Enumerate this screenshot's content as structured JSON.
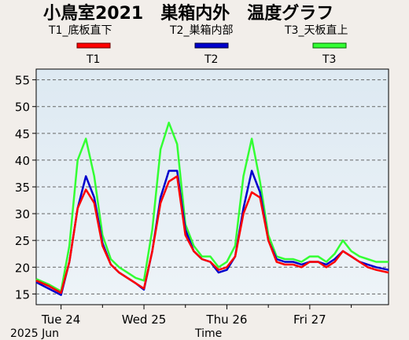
{
  "chart_data": {
    "type": "line",
    "title": "小鳥室2021　巣箱内外　温度グラフ",
    "series_labels": [
      "T1_底板直下",
      "T2_巣箱内部",
      "T3_天板直上"
    ],
    "legend": [
      {
        "name": "T1",
        "color": "#ff0000"
      },
      {
        "name": "T2",
        "color": "#0000cc"
      },
      {
        "name": "T3",
        "color": "#33ff33"
      }
    ],
    "xlabel": "Time",
    "date_label": "2025 Jun",
    "x_ticks": [
      "Tue 24",
      "Wed 25",
      "Thu 26",
      "Fri 27"
    ],
    "y_ticks": [
      15,
      20,
      25,
      30,
      35,
      40,
      45,
      50,
      55
    ],
    "ylim": [
      13,
      57
    ],
    "xlim": [
      -0.3,
      3.95
    ],
    "grid": true,
    "legend_position": "top",
    "series": [
      {
        "name": "T1",
        "color": "#ff0000",
        "x": [
          -0.3,
          -0.15,
          0.0,
          0.1,
          0.2,
          0.3,
          0.4,
          0.5,
          0.6,
          0.7,
          0.8,
          0.9,
          1.0,
          1.1,
          1.2,
          1.3,
          1.4,
          1.5,
          1.6,
          1.7,
          1.8,
          1.9,
          2.0,
          2.1,
          2.2,
          2.3,
          2.4,
          2.5,
          2.6,
          2.7,
          2.8,
          2.9,
          3.0,
          3.1,
          3.2,
          3.3,
          3.4,
          3.5,
          3.6,
          3.7,
          3.8,
          3.95
        ],
        "y": [
          17.5,
          16.5,
          15.2,
          21,
          31,
          34.5,
          32,
          24,
          20.5,
          19,
          18,
          17,
          16,
          23,
          32,
          36,
          37,
          26,
          23,
          21.5,
          21,
          19.5,
          20,
          22,
          30,
          34,
          33,
          25,
          21,
          20.5,
          20.5,
          20,
          21,
          21,
          20,
          21,
          23,
          22,
          21,
          20,
          19.5,
          19
        ]
      },
      {
        "name": "T2",
        "color": "#0000cc",
        "x": [
          -0.3,
          -0.15,
          0.0,
          0.1,
          0.2,
          0.3,
          0.4,
          0.5,
          0.6,
          0.7,
          0.8,
          0.9,
          1.0,
          1.1,
          1.2,
          1.3,
          1.4,
          1.5,
          1.6,
          1.7,
          1.8,
          1.9,
          2.0,
          2.1,
          2.2,
          2.3,
          2.4,
          2.5,
          2.6,
          2.7,
          2.8,
          2.9,
          3.0,
          3.1,
          3.2,
          3.3,
          3.4,
          3.5,
          3.6,
          3.7,
          3.8,
          3.95
        ],
        "y": [
          17.2,
          16.0,
          14.8,
          21,
          31,
          37,
          33,
          24.5,
          20.5,
          19,
          18,
          17,
          15.8,
          23,
          33,
          38,
          38,
          27,
          23,
          21.5,
          21,
          19,
          19.5,
          22,
          31,
          38,
          34,
          25,
          21.5,
          21,
          21,
          20.5,
          21,
          21,
          20.5,
          21.5,
          23,
          22,
          21,
          20.5,
          20,
          19.5
        ]
      },
      {
        "name": "T3",
        "color": "#33ff33",
        "x": [
          -0.3,
          -0.15,
          0.0,
          0.1,
          0.2,
          0.3,
          0.4,
          0.5,
          0.6,
          0.7,
          0.8,
          0.9,
          1.0,
          1.1,
          1.2,
          1.3,
          1.4,
          1.5,
          1.6,
          1.7,
          1.8,
          1.9,
          2.0,
          2.1,
          2.2,
          2.3,
          2.4,
          2.5,
          2.6,
          2.7,
          2.8,
          2.9,
          3.0,
          3.1,
          3.2,
          3.3,
          3.4,
          3.5,
          3.6,
          3.7,
          3.8,
          3.95
        ],
        "y": [
          17.8,
          16.8,
          15.5,
          24,
          40,
          44,
          37,
          26,
          21.5,
          20,
          19,
          18,
          17.5,
          27,
          42,
          47,
          43,
          28,
          24,
          22,
          22,
          20,
          21,
          24,
          37,
          44,
          36,
          26,
          22,
          21.5,
          21.5,
          21,
          22,
          22,
          21,
          22.5,
          25,
          23,
          22,
          21.5,
          21,
          21
        ]
      }
    ]
  }
}
